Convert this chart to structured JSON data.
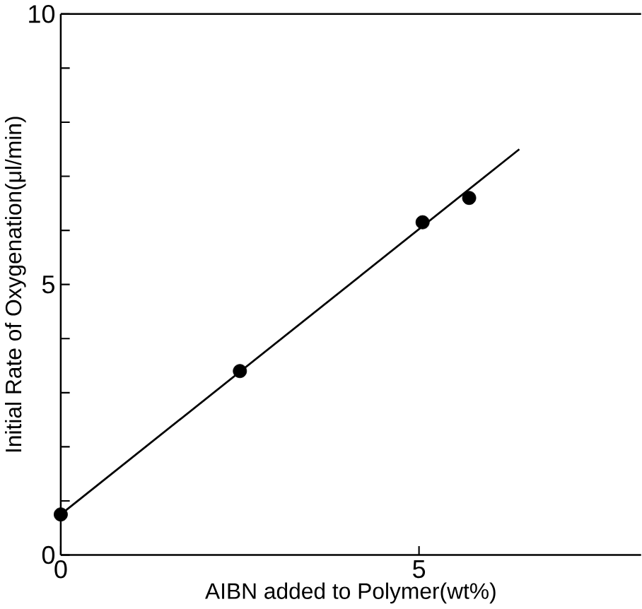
{
  "chart_data": {
    "type": "scatter",
    "xlabel": "AIBN added to Polymer(wt%)",
    "ylabel": "Initial Rate of Oxygenation(μl/min)",
    "xlim": [
      0,
      8.1
    ],
    "ylim": [
      0,
      10
    ],
    "xticks": [
      0,
      5
    ],
    "yticks": [
      0,
      {
        "value": 1,
        "label": null
      },
      {
        "value": 2,
        "label": null
      },
      {
        "value": 3,
        "label": null
      },
      {
        "value": 4,
        "label": null
      },
      5,
      {
        "value": 6,
        "label": null
      },
      {
        "value": 7,
        "label": null
      },
      {
        "value": 8,
        "label": null
      },
      {
        "value": 9,
        "label": null
      },
      10
    ],
    "grid": false,
    "legend": false,
    "series": [
      {
        "color": "#000000",
        "marker": "circle",
        "x": [
          0,
          2.5,
          5.05,
          5.7
        ],
        "values": [
          0.75,
          3.4,
          6.15,
          6.6
        ]
      },
      {
        "type": "line",
        "color": "#000000",
        "marker": "none",
        "line_style": "solid",
        "x": [
          0,
          6.4
        ],
        "values": [
          0.75,
          7.5
        ]
      }
    ]
  }
}
